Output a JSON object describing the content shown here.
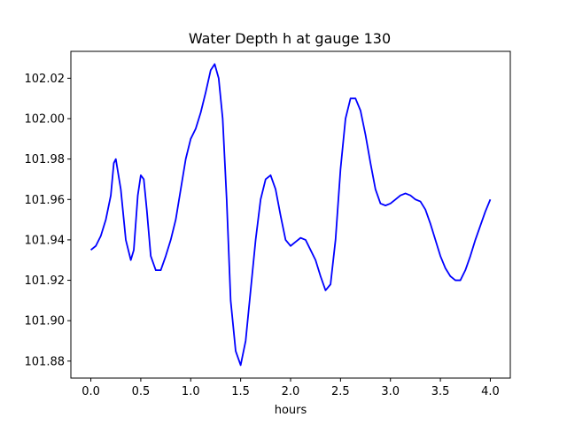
{
  "chart_data": {
    "type": "line",
    "title": "Water Depth h at gauge 130",
    "xlabel": "hours",
    "ylabel": "",
    "xlim": [
      -0.2,
      4.2
    ],
    "ylim": [
      101.8716,
      102.0333
    ],
    "x_ticks": [
      "0.0",
      "0.5",
      "1.0",
      "1.5",
      "2.0",
      "2.5",
      "3.0",
      "3.5",
      "4.0"
    ],
    "y_ticks": [
      "101.88",
      "101.90",
      "101.92",
      "101.94",
      "101.96",
      "101.98",
      "102.00",
      "102.02"
    ],
    "grid": false,
    "line_color": "#0000ff",
    "series": [
      {
        "x": [
          0.0,
          0.05,
          0.1,
          0.15,
          0.2,
          0.23,
          0.25,
          0.3,
          0.35,
          0.4,
          0.43,
          0.47,
          0.5,
          0.53,
          0.56,
          0.6,
          0.65,
          0.7,
          0.75,
          0.8,
          0.85,
          0.9,
          0.95,
          1.0,
          1.05,
          1.1,
          1.15,
          1.2,
          1.24,
          1.28,
          1.32,
          1.36,
          1.4,
          1.45,
          1.5,
          1.55,
          1.6,
          1.65,
          1.7,
          1.75,
          1.8,
          1.85,
          1.9,
          1.95,
          2.0,
          2.05,
          2.1,
          2.15,
          2.2,
          2.25,
          2.3,
          2.35,
          2.4,
          2.45,
          2.5,
          2.55,
          2.6,
          2.65,
          2.7,
          2.75,
          2.8,
          2.85,
          2.9,
          2.95,
          3.0,
          3.05,
          3.1,
          3.15,
          3.2,
          3.25,
          3.3,
          3.35,
          3.4,
          3.45,
          3.5,
          3.55,
          3.6,
          3.65,
          3.7,
          3.75,
          3.8,
          3.85,
          3.9,
          3.95,
          4.0
        ],
        "y": [
          101.935,
          101.937,
          101.942,
          101.95,
          101.962,
          101.978,
          101.98,
          101.965,
          101.94,
          101.93,
          101.935,
          101.962,
          101.972,
          101.97,
          101.955,
          101.932,
          101.925,
          101.925,
          101.932,
          101.94,
          101.95,
          101.965,
          101.98,
          101.99,
          101.995,
          102.003,
          102.013,
          102.024,
          102.027,
          102.02,
          102.0,
          101.96,
          101.91,
          101.885,
          101.878,
          101.89,
          101.915,
          101.94,
          101.96,
          101.97,
          101.972,
          101.965,
          101.952,
          101.94,
          101.937,
          101.939,
          101.941,
          101.94,
          101.935,
          101.93,
          101.922,
          101.915,
          101.918,
          101.94,
          101.975,
          102.0,
          102.01,
          102.01,
          102.004,
          101.992,
          101.978,
          101.965,
          101.958,
          101.957,
          101.958,
          101.96,
          101.962,
          101.963,
          101.962,
          101.96,
          101.959,
          101.955,
          101.948,
          101.94,
          101.932,
          101.926,
          101.922,
          101.92,
          101.92,
          101.925,
          101.932,
          101.94,
          101.947,
          101.954,
          101.96
        ]
      }
    ]
  }
}
